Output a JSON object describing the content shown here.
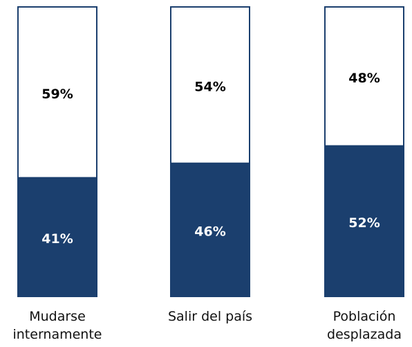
{
  "chart_data": {
    "type": "stacked_bar",
    "categories": [
      "Mudarse internamente",
      "Salir del país",
      "Población desplazada"
    ],
    "series": [
      {
        "color": "#1b3f6e",
        "values": [
          41,
          46,
          52
        ],
        "value_labels": [
          "41%",
          "46%",
          "52%"
        ]
      },
      {
        "color": "#ffffff",
        "values": [
          59,
          54,
          48
        ],
        "value_labels": [
          "59%",
          "54%",
          "48%"
        ]
      }
    ],
    "ylim": [
      0,
      100
    ]
  }
}
